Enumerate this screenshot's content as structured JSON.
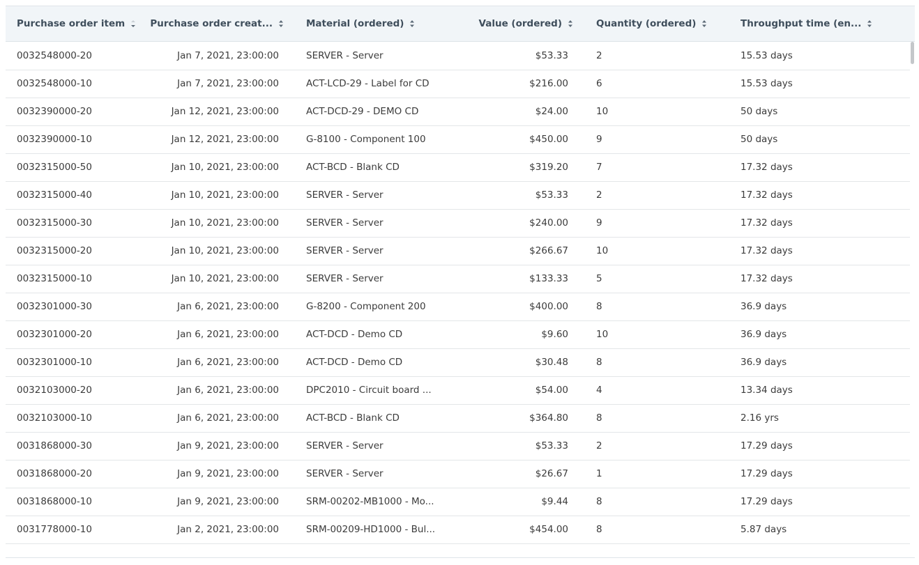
{
  "table": {
    "columns": [
      "Purchase order item",
      "Purchase order creat...",
      "Material (ordered)",
      "Value (ordered)",
      "Quantity (ordered)",
      "Throughput time (en..."
    ],
    "rows": [
      [
        "0032548000-20",
        "Jan 7, 2021, 23:00:00",
        "SERVER - Server",
        "$53.33",
        "2",
        "15.53 days"
      ],
      [
        "0032548000-10",
        "Jan 7, 2021, 23:00:00",
        "ACT-LCD-29 - Label for CD",
        "$216.00",
        "6",
        "15.53 days"
      ],
      [
        "0032390000-20",
        "Jan 12, 2021, 23:00:00",
        "ACT-DCD-29 - DEMO CD",
        "$24.00",
        "10",
        "50 days"
      ],
      [
        "0032390000-10",
        "Jan 12, 2021, 23:00:00",
        "G-8100 - Component 100",
        "$450.00",
        "9",
        "50 days"
      ],
      [
        "0032315000-50",
        "Jan 10, 2021, 23:00:00",
        "ACT-BCD - Blank CD",
        "$319.20",
        "7",
        "17.32 days"
      ],
      [
        "0032315000-40",
        "Jan 10, 2021, 23:00:00",
        "SERVER - Server",
        "$53.33",
        "2",
        "17.32 days"
      ],
      [
        "0032315000-30",
        "Jan 10, 2021, 23:00:00",
        "SERVER - Server",
        "$240.00",
        "9",
        "17.32 days"
      ],
      [
        "0032315000-20",
        "Jan 10, 2021, 23:00:00",
        "SERVER - Server",
        "$266.67",
        "10",
        "17.32 days"
      ],
      [
        "0032315000-10",
        "Jan 10, 2021, 23:00:00",
        "SERVER - Server",
        "$133.33",
        "5",
        "17.32 days"
      ],
      [
        "0032301000-30",
        "Jan 6, 2021, 23:00:00",
        "G-8200 - Component 200",
        "$400.00",
        "8",
        "36.9 days"
      ],
      [
        "0032301000-20",
        "Jan 6, 2021, 23:00:00",
        "ACT-DCD - Demo CD",
        "$9.60",
        "10",
        "36.9 days"
      ],
      [
        "0032301000-10",
        "Jan 6, 2021, 23:00:00",
        "ACT-DCD - Demo CD",
        "$30.48",
        "8",
        "36.9 days"
      ],
      [
        "0032103000-20",
        "Jan 6, 2021, 23:00:00",
        "DPC2010 - Circuit board ...",
        "$54.00",
        "4",
        "13.34 days"
      ],
      [
        "0032103000-10",
        "Jan 6, 2021, 23:00:00",
        "ACT-BCD - Blank CD",
        "$364.80",
        "8",
        "2.16 yrs"
      ],
      [
        "0031868000-30",
        "Jan 9, 2021, 23:00:00",
        "SERVER - Server",
        "$53.33",
        "2",
        "17.29 days"
      ],
      [
        "0031868000-20",
        "Jan 9, 2021, 23:00:00",
        "SERVER - Server",
        "$26.67",
        "1",
        "17.29 days"
      ],
      [
        "0031868000-10",
        "Jan 9, 2021, 23:00:00",
        "SRM-00202-MB1000 - Mo...",
        "$9.44",
        "8",
        "17.29 days"
      ],
      [
        "0031778000-10",
        "Jan 2, 2021, 23:00:00",
        "SRM-00209-HD1000 - Bul...",
        "$454.00",
        "8",
        "5.87 days"
      ]
    ]
  }
}
